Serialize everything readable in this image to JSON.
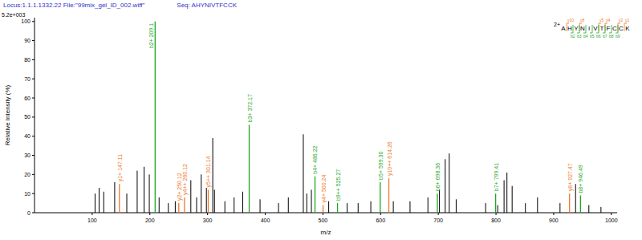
{
  "chart_data": {
    "type": "spectrum",
    "title": "Locus:1.1.1.1332.22 File:\"99mix_gel_ID_002.wiff\"",
    "subtitle": "Seq: AHYNIVTFCCK",
    "intensity_max_label": "5.2e+003",
    "x_label": "m/z",
    "y_label": "Relative Intensity (%)",
    "xlim": [
      0,
      1010
    ],
    "xticks": [
      100,
      200,
      300,
      400,
      500,
      600,
      700,
      800,
      900,
      1000
    ],
    "ylim": [
      0,
      102
    ],
    "yticks": [
      0,
      10,
      20,
      30,
      40,
      50,
      60,
      70,
      80,
      90,
      100
    ],
    "grid": false,
    "series": [
      {
        "color": "#000000",
        "x": [
          105,
          112,
          120,
          139,
          160,
          178,
          190,
          199,
          216,
          232,
          244,
          271,
          281,
          289,
          298,
          309,
          312,
          330,
          346,
          361,
          391,
          423,
          440,
          466,
          472,
          480,
          510,
          542,
          561,
          583,
          622,
          651,
          682,
          702,
          712,
          719,
          731,
          782,
          803,
          814,
          819,
          828,
          851,
          872,
          911,
          938,
          961,
          982
        ],
        "values": [
          10,
          13,
          11,
          16,
          10,
          22,
          24,
          20,
          8,
          5,
          6,
          17,
          8,
          20,
          13,
          39,
          12,
          6,
          8,
          11,
          7,
          5,
          8,
          41,
          10,
          12,
          6,
          5,
          5,
          6,
          6,
          6,
          8,
          12,
          28,
          31,
          7,
          5,
          4,
          17,
          21,
          14,
          5,
          8,
          5,
          15,
          4,
          3
        ]
      },
      {
        "color": "#1fa81f",
        "x": [
          209.1,
          372.17,
          486.22,
          525.27,
          599.3,
          698.36,
          799.41,
          946.49
        ],
        "values": [
          100,
          46,
          19,
          5,
          16,
          10,
          10,
          9
        ],
        "peak_labels": [
          "b2+ 209.1",
          "b3+ 372.17",
          "b4+ 486.22",
          "b9++ 525.27",
          "b5+ 599.30",
          "b6+ 698.36",
          "b7+ 799.41",
          "b8+ 946.49"
        ]
      },
      {
        "color": "#f07828",
        "x": [
          147.11,
          250.12,
          260.12,
          301.14,
          500.24,
          614.26,
          927.47
        ],
        "values": [
          15,
          5,
          8,
          12,
          4,
          18,
          10
        ],
        "peak_labels": [
          "y1+ 147.11",
          "y2+ 250.12",
          "y4++ 260.12",
          "y5++ 301.14",
          "y4+ 500.24",
          "y10++ 614.26",
          "y8+ 927.47"
        ]
      }
    ],
    "sequence_graphic": {
      "charge": "2+",
      "residues": [
        "A",
        "H",
        "Y",
        "N",
        "I",
        "V",
        "T",
        "F",
        "C",
        "C",
        "K"
      ],
      "y_marks": [
        "y10",
        null,
        "y8",
        null,
        null,
        "y5",
        "y4",
        null,
        "y2",
        "y1"
      ],
      "b_marks": [
        null,
        "b2",
        "b3",
        "b4",
        "b5",
        "b6",
        "b7",
        "b8",
        "b9",
        null
      ]
    }
  }
}
